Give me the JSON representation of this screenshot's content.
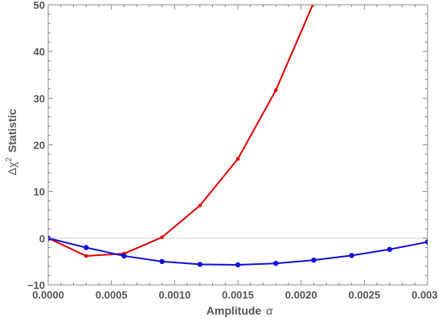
{
  "chart_data": {
    "type": "line",
    "xlabel": "Amplitude",
    "xlabel_symbol": "α",
    "ylabel_prefix": "Δχ",
    "ylabel_sup": "2",
    "ylabel_suffix": "Statistic",
    "xlim": [
      0,
      0.003
    ],
    "ylim": [
      -10,
      50
    ],
    "x_ticks": [
      "0.0000",
      "0.0005",
      "0.0010",
      "0.0015",
      "0.0020",
      "0.0025",
      "0.0030"
    ],
    "y_ticks": [
      "−10",
      "0",
      "10",
      "20",
      "30",
      "40",
      "50"
    ],
    "reference_line_y": 0,
    "grid": false,
    "series": [
      {
        "color": "#e00000",
        "x": [
          0.0,
          0.0003,
          0.0006,
          0.0009,
          0.0012,
          0.0015,
          0.0018,
          0.0021
        ],
        "y": [
          0.0,
          -3.8,
          -3.3,
          0.2,
          7.0,
          17.0,
          31.7,
          50.5
        ]
      },
      {
        "color": "#1010d8",
        "x": [
          0.0,
          0.0003,
          0.0006,
          0.0009,
          0.0012,
          0.0015,
          0.0018,
          0.0021,
          0.0024,
          0.0027,
          0.003
        ],
        "y": [
          0.0,
          -2.0,
          -3.8,
          -5.0,
          -5.6,
          -5.7,
          -5.4,
          -4.7,
          -3.7,
          -2.4,
          -0.8
        ]
      }
    ]
  }
}
